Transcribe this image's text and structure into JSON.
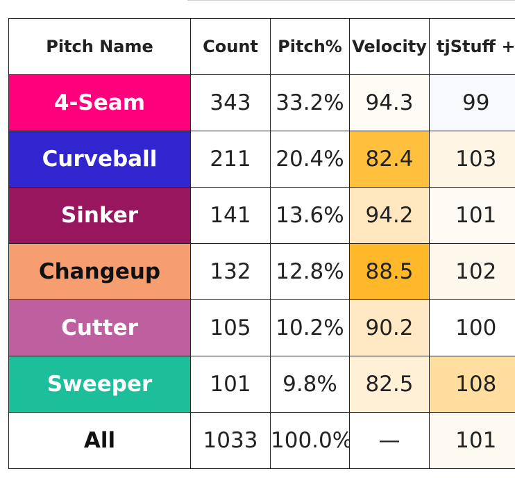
{
  "chart_data": {
    "type": "table",
    "columns": [
      "Pitch Name",
      "Count",
      "Pitch%",
      "Velocity",
      "tjStuff +"
    ],
    "rows": [
      {
        "pitch": "4-Seam",
        "count": "343",
        "pct": "33.2%",
        "velocity": "94.3",
        "stuff": "99",
        "pitch_bg": "#FF007D",
        "pitch_fg": "#ffffff",
        "velocity_bg": "#FFFCF6",
        "stuff_bg": "#F7F9FE"
      },
      {
        "pitch": "Curveball",
        "count": "211",
        "pct": "20.4%",
        "velocity": "82.4",
        "stuff": "103",
        "pitch_bg": "#3025CE",
        "pitch_fg": "#ffffff",
        "velocity_bg": "#FFC13D",
        "stuff_bg": "#FEF5E5"
      },
      {
        "pitch": "Sinker",
        "count": "141",
        "pct": "13.6%",
        "velocity": "94.2",
        "stuff": "101",
        "pitch_bg": "#98165D",
        "pitch_fg": "#ffffff",
        "velocity_bg": "#FFE8C0",
        "stuff_bg": "#FFFBF4"
      },
      {
        "pitch": "Changeup",
        "count": "132",
        "pct": "12.8%",
        "velocity": "88.5",
        "stuff": "102",
        "pitch_bg": "#F79E70",
        "pitch_fg": "#111111",
        "velocity_bg": "#FFB82A",
        "stuff_bg": "#FEF8EC"
      },
      {
        "pitch": "Cutter",
        "count": "105",
        "pct": "10.2%",
        "velocity": "90.2",
        "stuff": "100",
        "pitch_bg": "#BE5FA0",
        "pitch_fg": "#ffffff",
        "velocity_bg": "#FFE9C4",
        "stuff_bg": "#ffffff"
      },
      {
        "pitch": "Sweeper",
        "count": "101",
        "pct": "9.8%",
        "velocity": "82.5",
        "stuff": "108",
        "pitch_bg": "#1DBE9A",
        "pitch_fg": "#ffffff",
        "velocity_bg": "#FFF0D6",
        "stuff_bg": "#FFDEA0"
      },
      {
        "pitch": "All",
        "count": "1033",
        "pct": "100.0%",
        "velocity": "—",
        "stuff": "101",
        "pitch_bg": "#ffffff",
        "pitch_fg": "#111111",
        "velocity_bg": "#ffffff",
        "stuff_bg": "#FFFAF1"
      }
    ]
  }
}
